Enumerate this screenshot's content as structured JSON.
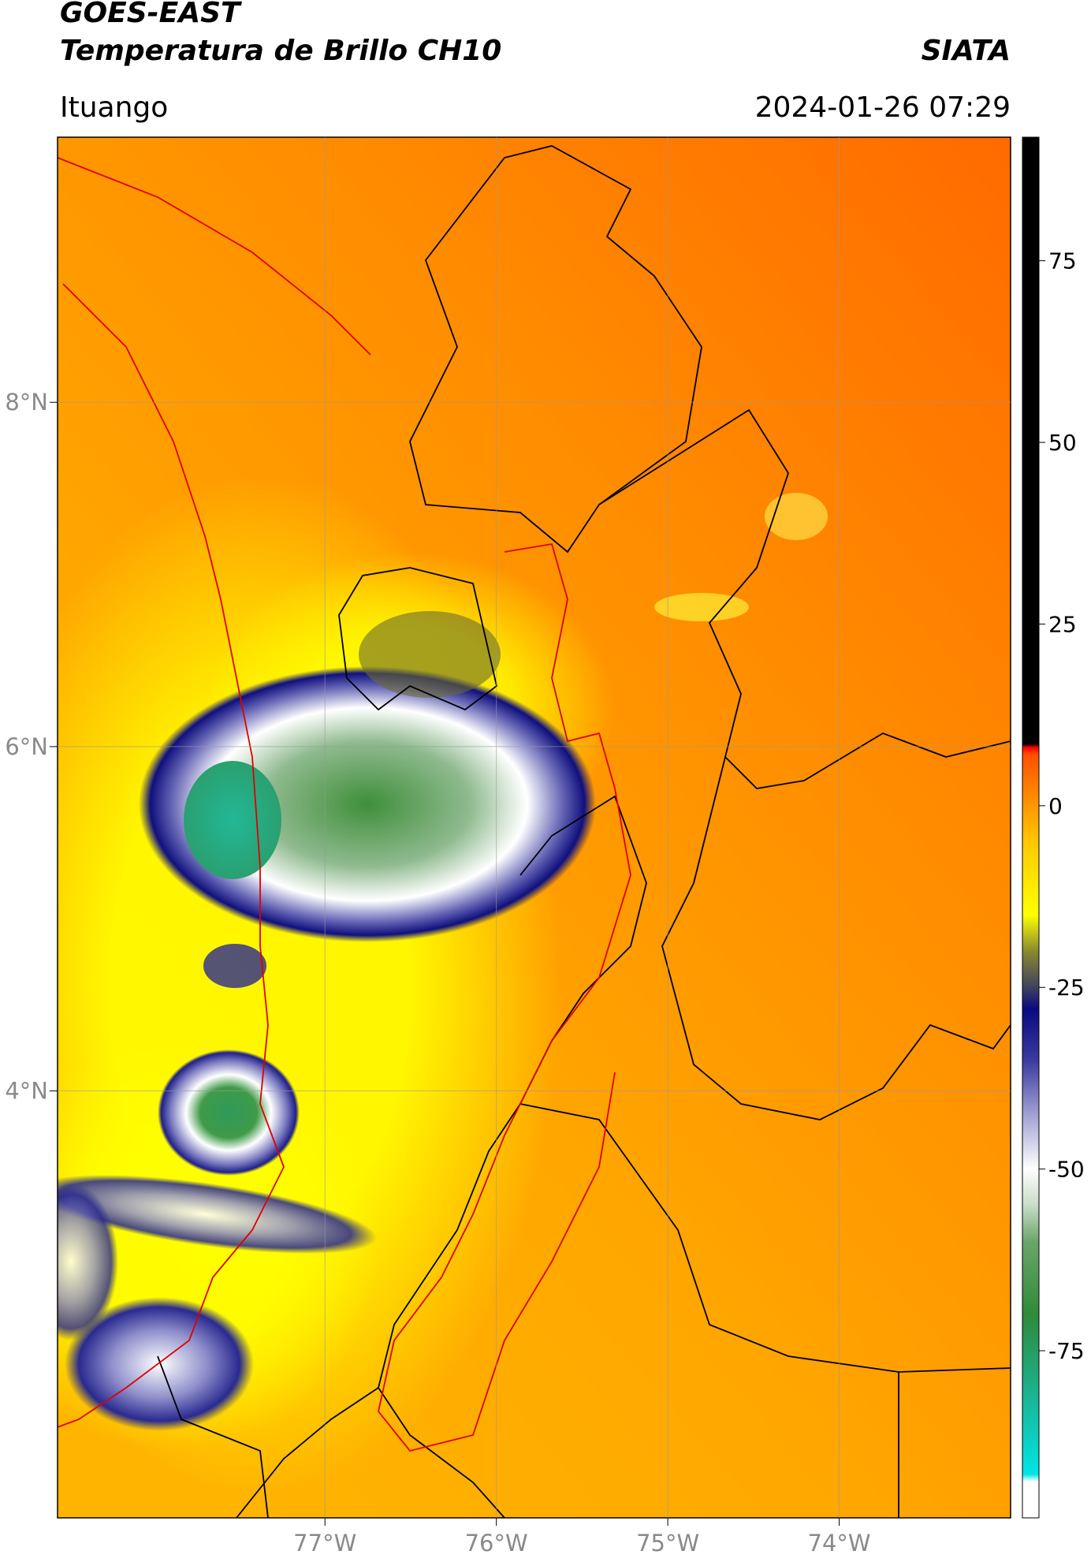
{
  "header": {
    "satellite": "GOES-EAST",
    "product": "Temperatura de Brillo CH10",
    "source": "SIATA",
    "region": "Ituango",
    "datetime": "2024-01-26 07:29"
  },
  "map": {
    "xlim": [
      -78.56,
      -73.0
    ],
    "ylim": [
      1.52,
      9.54
    ],
    "grid": true,
    "xticks": [
      {
        "value": -77,
        "label": "77°W"
      },
      {
        "value": -76,
        "label": "76°W"
      },
      {
        "value": -75,
        "label": "75°W"
      },
      {
        "value": -74,
        "label": "74°W"
      }
    ],
    "yticks": [
      {
        "value": 8,
        "label": "8°N"
      },
      {
        "value": 6,
        "label": "6°N"
      },
      {
        "value": 4,
        "label": "4°N"
      }
    ]
  },
  "colorbar": {
    "lim": [
      -98,
      92
    ],
    "ticks": [
      75,
      50,
      25,
      0,
      -25,
      -50,
      -75
    ],
    "stops": [
      {
        "value": 92,
        "color": "#000000"
      },
      {
        "value": 8.5,
        "color": "#000000"
      },
      {
        "value": 8,
        "color": "#ff0000"
      },
      {
        "value": 7,
        "color": "#ff5000"
      },
      {
        "value": 0,
        "color": "#ff9600"
      },
      {
        "value": -5,
        "color": "#ffc800"
      },
      {
        "value": -15,
        "color": "#ffff00"
      },
      {
        "value": -20,
        "color": "#8a8a30"
      },
      {
        "value": -25,
        "color": "#404060"
      },
      {
        "value": -28,
        "color": "#0a0a80"
      },
      {
        "value": -35,
        "color": "#3a3aa0"
      },
      {
        "value": -42,
        "color": "#9a9ad0"
      },
      {
        "value": -50,
        "color": "#ffffff"
      },
      {
        "value": -55,
        "color": "#c8dcc8"
      },
      {
        "value": -60,
        "color": "#6aa56a"
      },
      {
        "value": -70,
        "color": "#2e8b3a"
      },
      {
        "value": -80,
        "color": "#1fae8a"
      },
      {
        "value": -92,
        "color": "#00e5e5"
      },
      {
        "value": -93,
        "color": "#ffffff"
      },
      {
        "value": -98,
        "color": "#ffffff"
      }
    ]
  }
}
